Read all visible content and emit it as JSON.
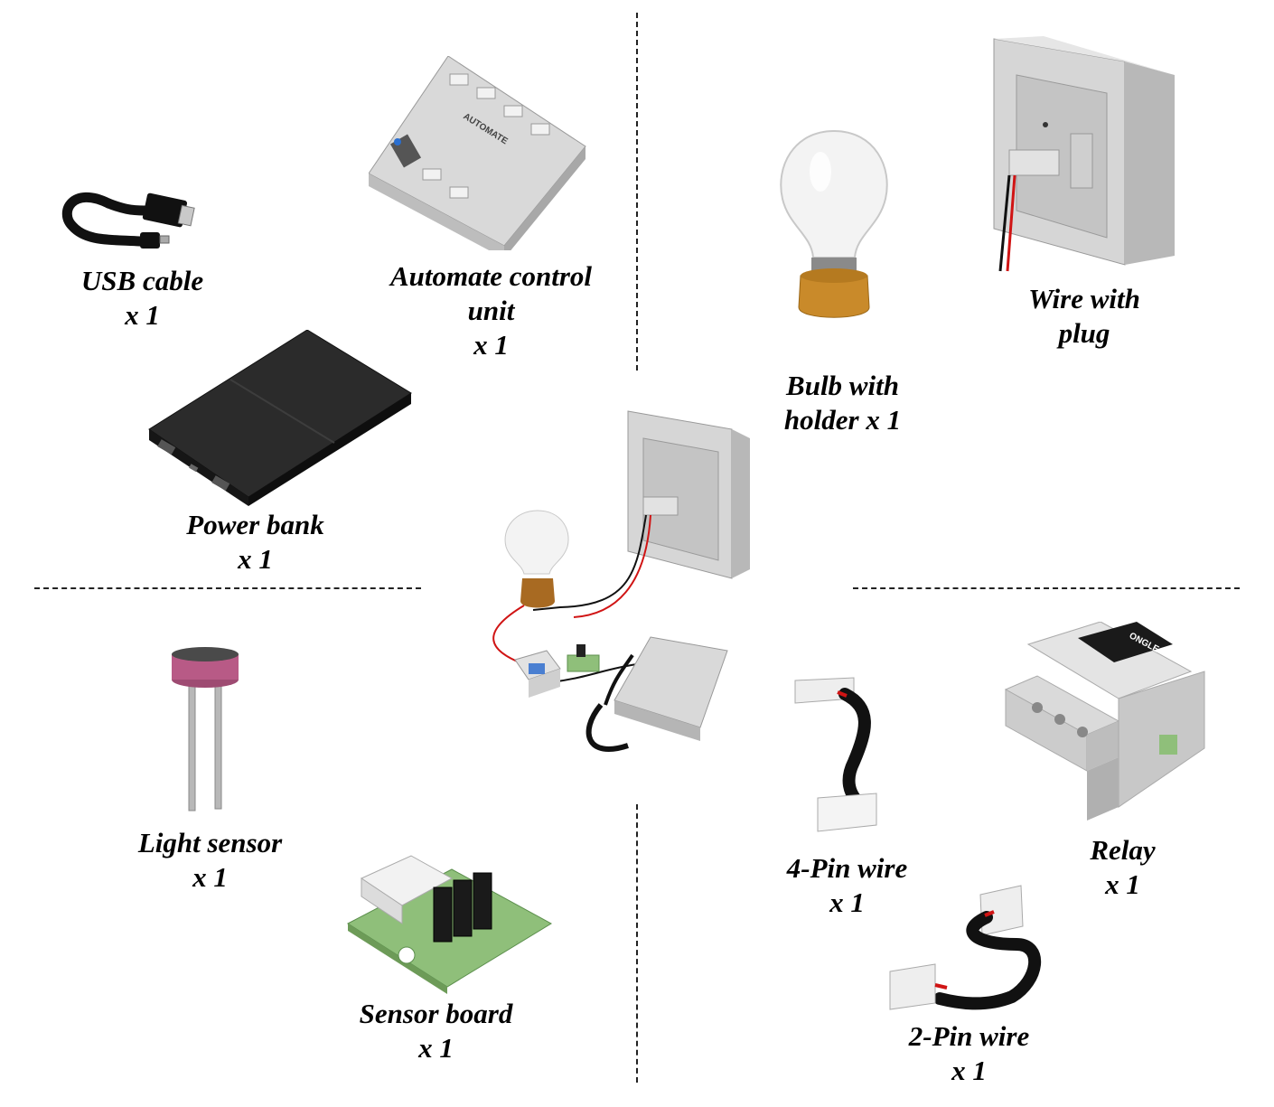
{
  "components": [
    {
      "id": "usb-cable",
      "name_lines": [
        "USB cable",
        "x 1"
      ],
      "icon": "usb-cable-icon"
    },
    {
      "id": "automate-control-unit",
      "name_lines": [
        "Automate control",
        "unit",
        "x 1"
      ],
      "icon": "control-unit-icon",
      "device_text": "AUTOMATE"
    },
    {
      "id": "power-bank",
      "name_lines": [
        "Power bank",
        "x 1"
      ],
      "icon": "power-bank-icon"
    },
    {
      "id": "bulb-with-holder",
      "name_lines": [
        "Bulb with",
        "holder x 1"
      ],
      "icon": "bulb-icon"
    },
    {
      "id": "wire-with-plug",
      "name_lines": [
        "Wire with",
        "plug"
      ],
      "icon": "wall-plug-icon"
    },
    {
      "id": "light-sensor",
      "name_lines": [
        "Light sensor",
        "x 1"
      ],
      "icon": "light-sensor-icon"
    },
    {
      "id": "sensor-board",
      "name_lines": [
        "Sensor board",
        "x 1"
      ],
      "icon": "sensor-board-icon"
    },
    {
      "id": "four-pin-wire",
      "name_lines": [
        "4-Pin wire",
        "x 1"
      ],
      "icon": "four-pin-wire-icon"
    },
    {
      "id": "relay",
      "name_lines": [
        "Relay",
        "x 1"
      ],
      "icon": "relay-icon",
      "device_text": "ONGLE"
    },
    {
      "id": "two-pin-wire",
      "name_lines": [
        "2-Pin wire",
        "x 1"
      ],
      "icon": "two-pin-wire-icon"
    }
  ],
  "colors": {
    "wire_red": "#d01414",
    "wire_black": "#111111",
    "bulb_base": "#c98a2a",
    "sensor_pink": "#b85a86",
    "board_green": "#8fbf7a",
    "device_gray": "#d9d9d9"
  }
}
